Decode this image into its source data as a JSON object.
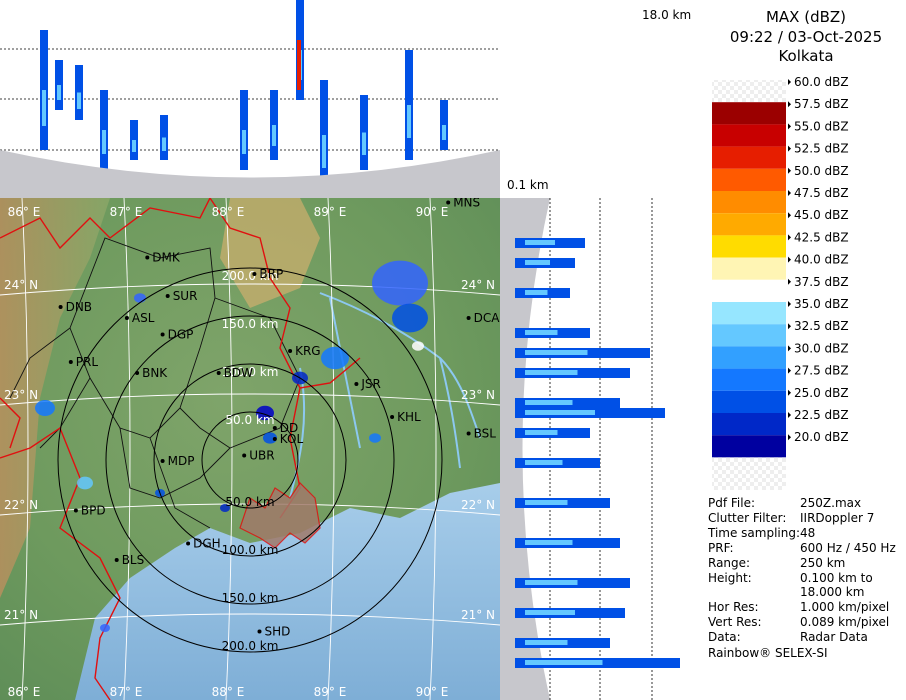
{
  "header": {
    "product": "MAX (dBZ)",
    "datetime": "09:22 / 03-Oct-2025",
    "station": "Kolkata"
  },
  "profile_labels": {
    "top_height": "18.0 km",
    "bottom_height": "0.1 km"
  },
  "legend": {
    "levels": [
      {
        "label": "60.0 dBZ",
        "color": "checker"
      },
      {
        "label": "57.5 dBZ",
        "color": "#9b0000"
      },
      {
        "label": "55.0 dBZ",
        "color": "#c80000"
      },
      {
        "label": "52.5 dBZ",
        "color": "#e61e00"
      },
      {
        "label": "50.0 dBZ",
        "color": "#ff5a00"
      },
      {
        "label": "47.5 dBZ",
        "color": "#ff8c00"
      },
      {
        "label": "45.0 dBZ",
        "color": "#ffaa00"
      },
      {
        "label": "42.5 dBZ",
        "color": "#ffdc00"
      },
      {
        "label": "40.0 dBZ",
        "color": "#fff5b4"
      },
      {
        "label": "37.5 dBZ",
        "color": "#ffffff"
      },
      {
        "label": "35.0 dBZ",
        "color": "#96e6ff"
      },
      {
        "label": "32.5 dBZ",
        "color": "#64c8ff"
      },
      {
        "label": "30.0 dBZ",
        "color": "#32a0ff"
      },
      {
        "label": "27.5 dBZ",
        "color": "#1478ff"
      },
      {
        "label": "25.0 dBZ",
        "color": "#0050e6"
      },
      {
        "label": "22.5 dBZ",
        "color": "#0028c8"
      },
      {
        "label": "20.0 dBZ",
        "color": "#0000a0"
      }
    ]
  },
  "info": [
    {
      "key": "Pdf File:",
      "value": "250Z.max"
    },
    {
      "key": "Clutter Filter:",
      "value": "IIRDoppler 7"
    },
    {
      "key": "Time sampling:",
      "value": "48"
    },
    {
      "key": "PRF:",
      "value": "600 Hz / 450 Hz"
    },
    {
      "key": "Range:",
      "value": "250 km"
    },
    {
      "key": "Height:",
      "value": "0.100 km to"
    },
    {
      "key": "",
      "value": "18.000 km"
    },
    {
      "key": "Hor Res:",
      "value": "1.000 km/pixel"
    },
    {
      "key": "Vert Res:",
      "value": "0.089 km/pixel"
    },
    {
      "key": "Data:",
      "value": "Radar Data"
    }
  ],
  "footer": "Rainbow® SELEX-SI",
  "map": {
    "lon_labels": [
      "86° E",
      "87° E",
      "88° E",
      "89° E",
      "90° E"
    ],
    "lat_labels": [
      "24° N",
      "23° N",
      "22° N",
      "21° N"
    ],
    "ring_labels": [
      "50.0 km",
      "100.0 km",
      "150.0 km",
      "200.0 km"
    ],
    "cities": [
      {
        "name": "MNS",
        "lon": 90.1,
        "lat": 24.75
      },
      {
        "name": "DMK",
        "lon": 87.15,
        "lat": 24.25
      },
      {
        "name": "BRP",
        "lon": 88.2,
        "lat": 24.1
      },
      {
        "name": "SUR",
        "lon": 87.35,
        "lat": 23.9
      },
      {
        "name": "DNB",
        "lon": 86.3,
        "lat": 23.8
      },
      {
        "name": "ASL",
        "lon": 86.95,
        "lat": 23.7
      },
      {
        "name": "DGP",
        "lon": 87.3,
        "lat": 23.55
      },
      {
        "name": "DCA",
        "lon": 90.3,
        "lat": 23.7
      },
      {
        "name": "KRG",
        "lon": 88.55,
        "lat": 23.4
      },
      {
        "name": "PRL",
        "lon": 86.4,
        "lat": 23.3
      },
      {
        "name": "BNK",
        "lon": 87.05,
        "lat": 23.2
      },
      {
        "name": "BDW",
        "lon": 87.85,
        "lat": 23.2
      },
      {
        "name": "JSR",
        "lon": 89.2,
        "lat": 23.1
      },
      {
        "name": "KHL",
        "lon": 89.55,
        "lat": 22.8
      },
      {
        "name": "BSL",
        "lon": 90.3,
        "lat": 22.65
      },
      {
        "name": "DD",
        "lon": 88.4,
        "lat": 22.7
      },
      {
        "name": "KOL",
        "lon": 88.4,
        "lat": 22.6
      },
      {
        "name": "UBR",
        "lon": 88.1,
        "lat": 22.45
      },
      {
        "name": "MDP",
        "lon": 87.3,
        "lat": 22.4
      },
      {
        "name": "BPD",
        "lon": 86.45,
        "lat": 21.95
      },
      {
        "name": "DGH",
        "lon": 87.55,
        "lat": 21.65
      },
      {
        "name": "BLS",
        "lon": 86.85,
        "lat": 21.5
      },
      {
        "name": "SHD",
        "lon": 88.25,
        "lat": 20.85
      }
    ]
  }
}
